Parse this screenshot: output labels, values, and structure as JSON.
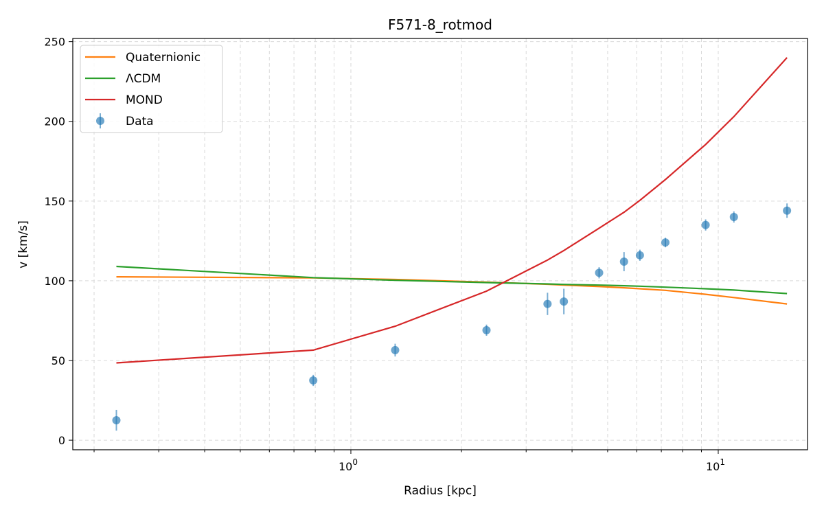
{
  "chart_data": {
    "type": "line",
    "title": "F571-8_rotmod",
    "xlabel": "Radius [kpc]",
    "ylabel": "v [km/s]",
    "xscale": "log",
    "xlim": [
      0.175,
      17.5
    ],
    "ylim": [
      -6,
      252
    ],
    "x_ticks": [
      {
        "value": 1,
        "base": "10",
        "exp": "0"
      },
      {
        "value": 10,
        "base": "10",
        "exp": "1"
      }
    ],
    "y_ticks": [
      0,
      50,
      100,
      150,
      200,
      250
    ],
    "grid": true,
    "legend_position": "top-left",
    "series": [
      {
        "name": "Quaternionic",
        "color": "#ff7f0e",
        "x": [
          0.23,
          0.79,
          1.32,
          2.34,
          3.43,
          3.8,
          4.74,
          5.54,
          6.12,
          7.18,
          9.24,
          11.03,
          15.39
        ],
        "y": [
          102.5,
          101.8,
          100.8,
          99.2,
          97.8,
          97.3,
          96.4,
          95.6,
          95.0,
          94.0,
          91.5,
          89.5,
          85.5
        ]
      },
      {
        "name": "ΛCDM",
        "color": "#2ca02c",
        "x": [
          0.23,
          0.79,
          1.32,
          2.34,
          3.43,
          3.8,
          4.74,
          5.54,
          6.12,
          7.18,
          9.24,
          11.03,
          15.39
        ],
        "y": [
          109.0,
          102.0,
          100.3,
          98.9,
          98.0,
          97.7,
          97.3,
          96.9,
          96.6,
          96.0,
          95.0,
          94.2,
          92.0
        ]
      },
      {
        "name": "MOND",
        "color": "#d62728",
        "x": [
          0.23,
          0.79,
          1.32,
          2.34,
          3.43,
          3.8,
          4.74,
          5.54,
          6.12,
          7.18,
          9.24,
          11.03,
          15.39
        ],
        "y": [
          48.5,
          56.5,
          71.5,
          93.5,
          113.0,
          119.0,
          133.0,
          143.0,
          150.5,
          163.5,
          185.5,
          203.0,
          240.0
        ]
      },
      {
        "name": "Data",
        "color": "#1f77b4",
        "kind": "errorbar",
        "x": [
          0.23,
          0.79,
          1.32,
          2.34,
          3.43,
          3.8,
          4.74,
          5.54,
          6.12,
          7.18,
          9.24,
          11.03,
          15.39
        ],
        "y": [
          12.5,
          37.5,
          56.5,
          69.0,
          85.5,
          87.0,
          105.0,
          112.0,
          116.0,
          124.0,
          135.0,
          140.0,
          144.0
        ],
        "err": [
          6.5,
          3.5,
          4.0,
          3.5,
          7.0,
          8.0,
          3.5,
          6.0,
          3.5,
          3.0,
          3.5,
          3.5,
          4.5
        ]
      }
    ]
  }
}
